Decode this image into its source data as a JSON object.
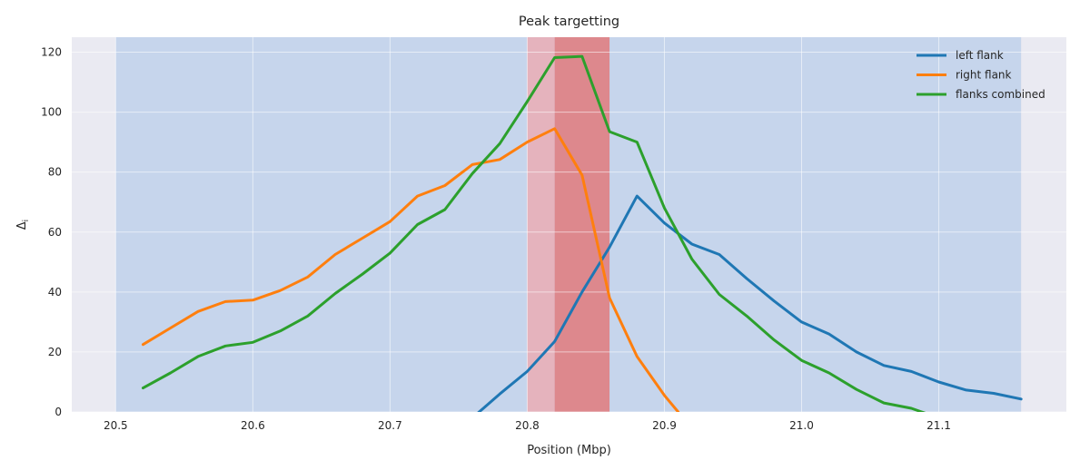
{
  "chart_data": {
    "type": "line",
    "title": "Peak targetting",
    "xlabel": "Position (Mbp)",
    "ylabel": "Δ",
    "ylabel_sub": "i",
    "xlim": [
      20.468,
      21.193
    ],
    "ylim": [
      0,
      125
    ],
    "xticks": [
      20.5,
      20.6,
      20.7,
      20.8,
      20.9,
      21.0,
      21.1
    ],
    "xtick_labels": [
      "20.5",
      "20.6",
      "20.7",
      "20.8",
      "20.9",
      "21.0",
      "21.1"
    ],
    "yticks": [
      0,
      20,
      40,
      60,
      80,
      100,
      120
    ],
    "ytick_labels": [
      "0",
      "20",
      "40",
      "60",
      "80",
      "100",
      "120"
    ],
    "grid": true,
    "legend_position": "top-right",
    "shaded_regions": [
      {
        "x0": 20.5,
        "x1": 21.16,
        "color": "#aec7e8",
        "opacity": 0.6
      },
      {
        "x0": 20.8,
        "x1": 20.82,
        "color": "#f2a4a9",
        "opacity": 0.7
      },
      {
        "x0": 20.82,
        "x1": 20.86,
        "color": "#e07a7c",
        "opacity": 0.85
      }
    ],
    "series": [
      {
        "name": "left flank",
        "color": "#1f77b4",
        "x": [
          20.76,
          20.78,
          20.8,
          20.82,
          20.84,
          20.86,
          20.88,
          20.9,
          20.92,
          20.94,
          20.96,
          20.98,
          21.0,
          21.02,
          21.04,
          21.06,
          21.08,
          21.1,
          21.12,
          21.14,
          21.16
        ],
        "y": [
          -2,
          6,
          13.5,
          23.5,
          40,
          55,
          72,
          63,
          56,
          52.5,
          44.5,
          37,
          30,
          26,
          20,
          15.5,
          13.5,
          10,
          7.3,
          6.2,
          4.3
        ]
      },
      {
        "name": "right flank",
        "color": "#ff7f0e",
        "x": [
          20.52,
          20.54,
          20.56,
          20.58,
          20.6,
          20.62,
          20.64,
          20.66,
          20.68,
          20.7,
          20.72,
          20.74,
          20.76,
          20.78,
          20.8,
          20.82,
          20.84,
          20.86,
          20.88,
          20.9,
          20.91
        ],
        "y": [
          22.5,
          28,
          33.5,
          36.8,
          37.3,
          40.5,
          45,
          52.5,
          58,
          63.5,
          72,
          75.5,
          82.5,
          84.2,
          90,
          94.5,
          79,
          38,
          18.5,
          5.5,
          0
        ]
      },
      {
        "name": "flanks combined",
        "color": "#2ca02c",
        "x": [
          20.52,
          20.54,
          20.56,
          20.58,
          20.6,
          20.62,
          20.64,
          20.66,
          20.68,
          20.7,
          20.72,
          20.74,
          20.76,
          20.78,
          20.8,
          20.82,
          20.84,
          20.86,
          20.88,
          20.9,
          20.92,
          20.94,
          20.96,
          20.98,
          21.0,
          21.02,
          21.04,
          21.06,
          21.08,
          21.1
        ],
        "y": [
          8,
          13,
          18.5,
          22,
          23.2,
          27,
          32,
          39.5,
          46,
          53,
          62.5,
          67.5,
          79.5,
          89.5,
          103.5,
          118.2,
          118.6,
          93.5,
          90,
          68,
          51,
          39.2,
          32,
          24,
          17.2,
          13,
          7.5,
          3,
          1.2,
          -2
        ]
      }
    ]
  }
}
